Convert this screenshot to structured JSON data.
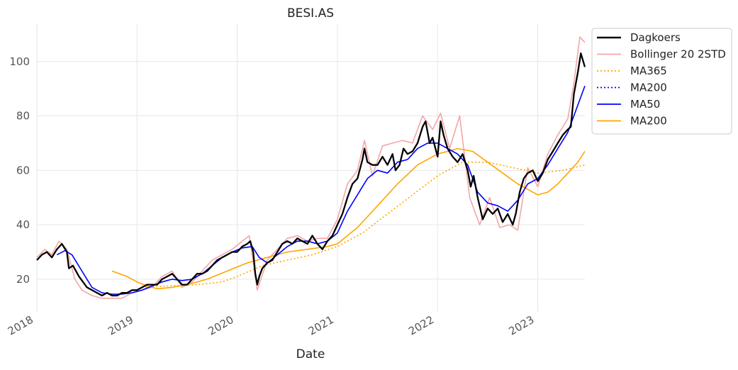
{
  "chart_data": {
    "type": "line",
    "title": "BESI.AS",
    "xlabel": "Date",
    "ylabel": "",
    "xlim": [
      2018.0,
      2023.47
    ],
    "ylim": [
      8,
      114
    ],
    "grid": true,
    "legend_position": "upper-right-outside",
    "x_ticks": [
      {
        "value": 2018,
        "label": "2018"
      },
      {
        "value": 2019,
        "label": "2019"
      },
      {
        "value": 2020,
        "label": "2020"
      },
      {
        "value": 2021,
        "label": "2021"
      },
      {
        "value": 2022,
        "label": "2022"
      },
      {
        "value": 2023,
        "label": "2023"
      }
    ],
    "y_ticks": [
      {
        "value": 20,
        "label": "20"
      },
      {
        "value": 40,
        "label": "40"
      },
      {
        "value": 60,
        "label": "60"
      },
      {
        "value": 80,
        "label": "80"
      },
      {
        "value": 100,
        "label": "100"
      }
    ],
    "legend": [
      {
        "label": "Dagkoers",
        "color": "#000000",
        "style": "solid"
      },
      {
        "label": "Bollinger 20 2STD",
        "color": "#f4a6a6",
        "style": "solid"
      },
      {
        "label": "MA365",
        "color": "#ffa500",
        "style": "dotted"
      },
      {
        "label": "MA200",
        "color": "#0000ff",
        "style": "dotted"
      },
      {
        "label": "MA50",
        "color": "#0000ff",
        "style": "solid"
      },
      {
        "label": "MA200",
        "color": "#ffa500",
        "style": "solid"
      }
    ],
    "series": [
      {
        "name": "Dagkoers",
        "color": "#000000",
        "style": "solid",
        "points": [
          [
            2018.0,
            27
          ],
          [
            2018.05,
            29
          ],
          [
            2018.1,
            30
          ],
          [
            2018.15,
            28
          ],
          [
            2018.2,
            31
          ],
          [
            2018.25,
            33
          ],
          [
            2018.3,
            30
          ],
          [
            2018.32,
            24
          ],
          [
            2018.36,
            25
          ],
          [
            2018.42,
            21
          ],
          [
            2018.5,
            17
          ],
          [
            2018.55,
            16
          ],
          [
            2018.6,
            15
          ],
          [
            2018.65,
            14
          ],
          [
            2018.7,
            15
          ],
          [
            2018.75,
            14
          ],
          [
            2018.8,
            14
          ],
          [
            2018.85,
            15
          ],
          [
            2018.9,
            15
          ],
          [
            2018.95,
            16
          ],
          [
            2019.0,
            16
          ],
          [
            2019.05,
            17
          ],
          [
            2019.1,
            18
          ],
          [
            2019.15,
            18
          ],
          [
            2019.2,
            18
          ],
          [
            2019.25,
            20
          ],
          [
            2019.3,
            21
          ],
          [
            2019.35,
            22
          ],
          [
            2019.4,
            20
          ],
          [
            2019.45,
            18
          ],
          [
            2019.5,
            18
          ],
          [
            2019.55,
            20
          ],
          [
            2019.6,
            22
          ],
          [
            2019.65,
            22
          ],
          [
            2019.7,
            23
          ],
          [
            2019.75,
            25
          ],
          [
            2019.8,
            27
          ],
          [
            2019.85,
            28
          ],
          [
            2019.9,
            29
          ],
          [
            2019.95,
            30
          ],
          [
            2020.0,
            30
          ],
          [
            2020.05,
            32
          ],
          [
            2020.1,
            33
          ],
          [
            2020.13,
            34
          ],
          [
            2020.16,
            30
          ],
          [
            2020.18,
            22
          ],
          [
            2020.2,
            18
          ],
          [
            2020.22,
            21
          ],
          [
            2020.25,
            24
          ],
          [
            2020.3,
            26
          ],
          [
            2020.35,
            27
          ],
          [
            2020.4,
            30
          ],
          [
            2020.45,
            33
          ],
          [
            2020.5,
            34
          ],
          [
            2020.55,
            33
          ],
          [
            2020.6,
            35
          ],
          [
            2020.65,
            34
          ],
          [
            2020.7,
            33
          ],
          [
            2020.75,
            36
          ],
          [
            2020.8,
            33
          ],
          [
            2020.85,
            31
          ],
          [
            2020.9,
            34
          ],
          [
            2020.95,
            36
          ],
          [
            2021.0,
            40
          ],
          [
            2021.05,
            44
          ],
          [
            2021.1,
            50
          ],
          [
            2021.15,
            55
          ],
          [
            2021.2,
            57
          ],
          [
            2021.25,
            64
          ],
          [
            2021.27,
            68
          ],
          [
            2021.3,
            63
          ],
          [
            2021.35,
            62
          ],
          [
            2021.4,
            62
          ],
          [
            2021.45,
            65
          ],
          [
            2021.5,
            62
          ],
          [
            2021.55,
            66
          ],
          [
            2021.58,
            60
          ],
          [
            2021.62,
            62
          ],
          [
            2021.66,
            68
          ],
          [
            2021.7,
            66
          ],
          [
            2021.75,
            67
          ],
          [
            2021.8,
            70
          ],
          [
            2021.85,
            76
          ],
          [
            2021.88,
            78
          ],
          [
            2021.92,
            70
          ],
          [
            2021.95,
            72
          ],
          [
            2022.0,
            65
          ],
          [
            2022.03,
            78
          ],
          [
            2022.06,
            73
          ],
          [
            2022.1,
            68
          ],
          [
            2022.15,
            65
          ],
          [
            2022.2,
            63
          ],
          [
            2022.25,
            66
          ],
          [
            2022.3,
            60
          ],
          [
            2022.33,
            54
          ],
          [
            2022.36,
            58
          ],
          [
            2022.4,
            50
          ],
          [
            2022.45,
            42
          ],
          [
            2022.5,
            46
          ],
          [
            2022.55,
            44
          ],
          [
            2022.6,
            46
          ],
          [
            2022.65,
            41
          ],
          [
            2022.7,
            44
          ],
          [
            2022.75,
            40
          ],
          [
            2022.78,
            44
          ],
          [
            2022.82,
            52
          ],
          [
            2022.86,
            57
          ],
          [
            2022.9,
            59
          ],
          [
            2022.95,
            60
          ],
          [
            2023.0,
            56
          ],
          [
            2023.05,
            59
          ],
          [
            2023.1,
            64
          ],
          [
            2023.15,
            67
          ],
          [
            2023.2,
            70
          ],
          [
            2023.25,
            73
          ],
          [
            2023.3,
            75
          ],
          [
            2023.33,
            76
          ],
          [
            2023.36,
            88
          ],
          [
            2023.4,
            96
          ],
          [
            2023.43,
            103
          ],
          [
            2023.47,
            98
          ]
        ]
      },
      {
        "name": "Bollinger 20 2STD",
        "color": "#f4a6a6",
        "style": "solid",
        "points": [
          [
            2018.0,
            28
          ],
          [
            2018.08,
            31
          ],
          [
            2018.15,
            29
          ],
          [
            2018.22,
            34
          ],
          [
            2018.3,
            31
          ],
          [
            2018.38,
            20
          ],
          [
            2018.45,
            16
          ],
          [
            2018.55,
            14
          ],
          [
            2018.65,
            13
          ],
          [
            2018.75,
            13
          ],
          [
            2018.85,
            13
          ],
          [
            2018.95,
            15
          ],
          [
            2019.05,
            16
          ],
          [
            2019.15,
            17
          ],
          [
            2019.25,
            21
          ],
          [
            2019.35,
            23
          ],
          [
            2019.45,
            17
          ],
          [
            2019.55,
            19
          ],
          [
            2019.65,
            23
          ],
          [
            2019.75,
            27
          ],
          [
            2019.85,
            29
          ],
          [
            2019.95,
            31
          ],
          [
            2020.05,
            34
          ],
          [
            2020.12,
            36
          ],
          [
            2020.2,
            16
          ],
          [
            2020.3,
            27
          ],
          [
            2020.4,
            31
          ],
          [
            2020.5,
            35
          ],
          [
            2020.6,
            36
          ],
          [
            2020.7,
            34
          ],
          [
            2020.8,
            35
          ],
          [
            2020.9,
            35
          ],
          [
            2021.0,
            42
          ],
          [
            2021.1,
            55
          ],
          [
            2021.2,
            60
          ],
          [
            2021.27,
            71
          ],
          [
            2021.35,
            58
          ],
          [
            2021.45,
            69
          ],
          [
            2021.55,
            70
          ],
          [
            2021.65,
            71
          ],
          [
            2021.75,
            70
          ],
          [
            2021.85,
            80
          ],
          [
            2021.95,
            75
          ],
          [
            2022.03,
            81
          ],
          [
            2022.12,
            68
          ],
          [
            2022.22,
            80
          ],
          [
            2022.32,
            50
          ],
          [
            2022.42,
            40
          ],
          [
            2022.52,
            50
          ],
          [
            2022.62,
            39
          ],
          [
            2022.72,
            40
          ],
          [
            2022.8,
            38
          ],
          [
            2022.9,
            61
          ],
          [
            2023.0,
            54
          ],
          [
            2023.1,
            66
          ],
          [
            2023.2,
            73
          ],
          [
            2023.3,
            79
          ],
          [
            2023.36,
            92
          ],
          [
            2023.42,
            109
          ],
          [
            2023.47,
            107
          ]
        ]
      },
      {
        "name": "MA365",
        "color": "#ffa500",
        "style": "dotted",
        "points": [
          [
            2019.05,
            17
          ],
          [
            2019.3,
            17.5
          ],
          [
            2019.6,
            18
          ],
          [
            2019.85,
            19
          ],
          [
            2020.0,
            21
          ],
          [
            2020.25,
            25
          ],
          [
            2020.5,
            27
          ],
          [
            2020.75,
            29
          ],
          [
            2021.0,
            32
          ],
          [
            2021.25,
            37
          ],
          [
            2021.5,
            44
          ],
          [
            2021.75,
            51
          ],
          [
            2022.0,
            58
          ],
          [
            2022.25,
            63
          ],
          [
            2022.5,
            63
          ],
          [
            2022.75,
            61
          ],
          [
            2023.0,
            59
          ],
          [
            2023.25,
            60
          ],
          [
            2023.47,
            62
          ]
        ]
      },
      {
        "name": "MA50",
        "color": "#0000ff",
        "style": "solid",
        "points": [
          [
            2018.2,
            29
          ],
          [
            2018.28,
            30.5
          ],
          [
            2018.35,
            29
          ],
          [
            2018.45,
            23
          ],
          [
            2018.55,
            17
          ],
          [
            2018.65,
            15
          ],
          [
            2018.75,
            14.5
          ],
          [
            2018.85,
            14.5
          ],
          [
            2018.95,
            15
          ],
          [
            2019.05,
            16
          ],
          [
            2019.15,
            17.5
          ],
          [
            2019.25,
            19
          ],
          [
            2019.35,
            20
          ],
          [
            2019.45,
            19.5
          ],
          [
            2019.55,
            20
          ],
          [
            2019.65,
            22
          ],
          [
            2019.75,
            25
          ],
          [
            2019.85,
            28
          ],
          [
            2019.95,
            30
          ],
          [
            2020.05,
            31.5
          ],
          [
            2020.15,
            32
          ],
          [
            2020.22,
            28
          ],
          [
            2020.3,
            26
          ],
          [
            2020.4,
            29
          ],
          [
            2020.5,
            32
          ],
          [
            2020.6,
            34
          ],
          [
            2020.7,
            34
          ],
          [
            2020.8,
            33
          ],
          [
            2020.9,
            34
          ],
          [
            2021.0,
            37
          ],
          [
            2021.1,
            45
          ],
          [
            2021.2,
            51
          ],
          [
            2021.3,
            57
          ],
          [
            2021.4,
            60
          ],
          [
            2021.5,
            59
          ],
          [
            2021.6,
            63
          ],
          [
            2021.7,
            64
          ],
          [
            2021.8,
            68
          ],
          [
            2021.9,
            70
          ],
          [
            2022.0,
            70
          ],
          [
            2022.1,
            68
          ],
          [
            2022.2,
            66
          ],
          [
            2022.3,
            62
          ],
          [
            2022.4,
            52
          ],
          [
            2022.5,
            48
          ],
          [
            2022.6,
            47
          ],
          [
            2022.7,
            45
          ],
          [
            2022.8,
            49
          ],
          [
            2022.9,
            55
          ],
          [
            2023.0,
            57
          ],
          [
            2023.1,
            62
          ],
          [
            2023.2,
            68
          ],
          [
            2023.3,
            74
          ],
          [
            2023.4,
            84
          ],
          [
            2023.47,
            91
          ]
        ]
      },
      {
        "name": "MA200",
        "color": "#ffa500",
        "style": "solid",
        "points": [
          [
            2018.75,
            23
          ],
          [
            2018.9,
            21
          ],
          [
            2019.0,
            19
          ],
          [
            2019.1,
            17.5
          ],
          [
            2019.2,
            16.5
          ],
          [
            2019.35,
            17
          ],
          [
            2019.5,
            18
          ],
          [
            2019.7,
            20
          ],
          [
            2019.9,
            23
          ],
          [
            2020.1,
            26
          ],
          [
            2020.3,
            28
          ],
          [
            2020.5,
            30
          ],
          [
            2020.7,
            31
          ],
          [
            2020.9,
            32
          ],
          [
            2021.0,
            33
          ],
          [
            2021.2,
            39
          ],
          [
            2021.4,
            47
          ],
          [
            2021.6,
            55
          ],
          [
            2021.8,
            62
          ],
          [
            2022.0,
            66
          ],
          [
            2022.2,
            68
          ],
          [
            2022.35,
            67
          ],
          [
            2022.5,
            63
          ],
          [
            2022.65,
            59
          ],
          [
            2022.8,
            55
          ],
          [
            2022.9,
            53
          ],
          [
            2023.0,
            51
          ],
          [
            2023.1,
            52
          ],
          [
            2023.2,
            55
          ],
          [
            2023.3,
            59
          ],
          [
            2023.4,
            63
          ],
          [
            2023.47,
            67
          ]
        ]
      }
    ]
  }
}
